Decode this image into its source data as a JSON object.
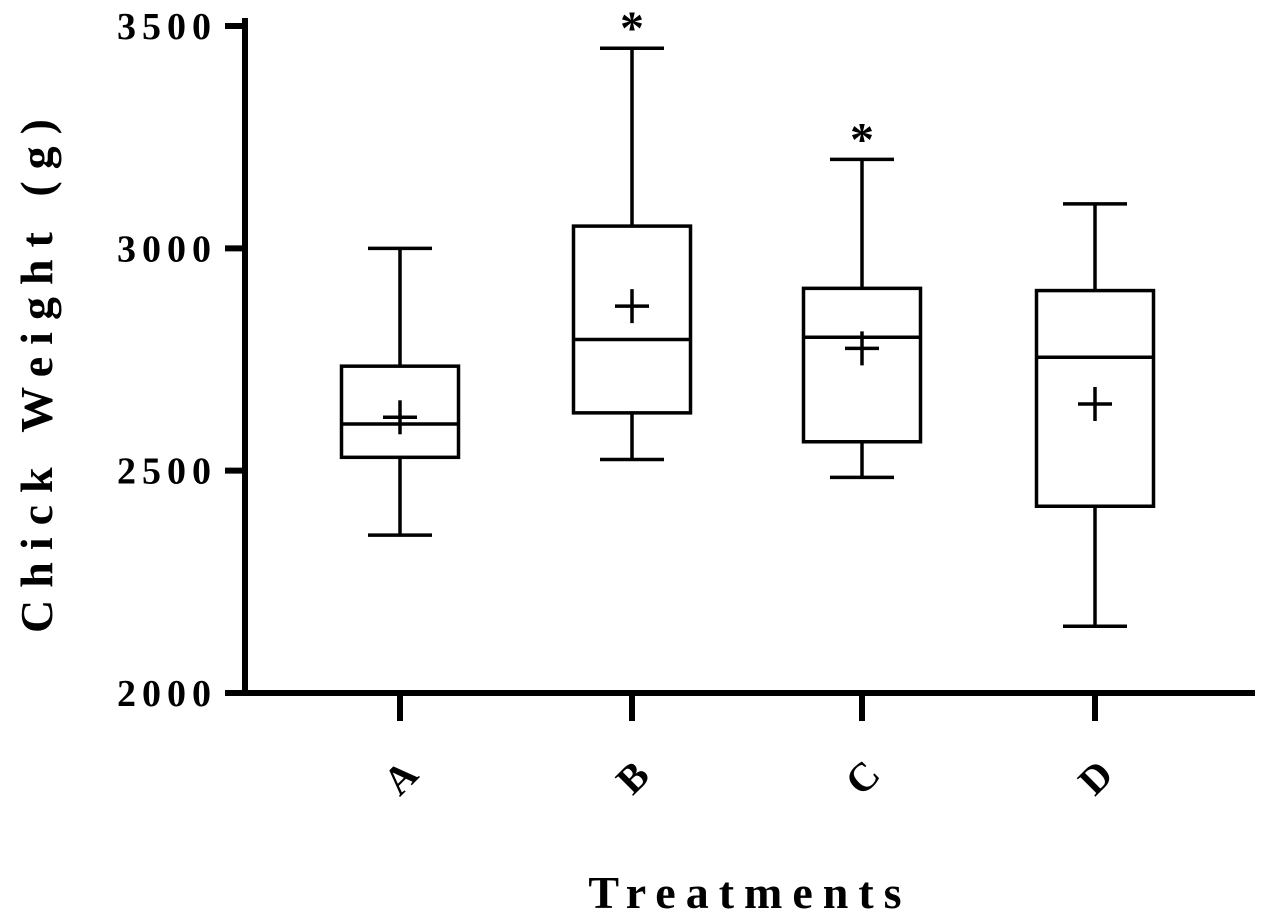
{
  "chart_data": {
    "type": "box",
    "title": "",
    "xlabel": "Treatments",
    "ylabel": "Chick Weight (g)",
    "ylim": [
      2000,
      3500
    ],
    "yticks": [
      2000,
      2500,
      3000,
      3500
    ],
    "ytick_labels": [
      "2000",
      "2500",
      "3000",
      "3500"
    ],
    "grid": false,
    "legend": "none",
    "categories": [
      "A",
      "B",
      "C",
      "D"
    ],
    "boxes": [
      {
        "category": "A",
        "min": 2355,
        "q1": 2530,
        "median": 2605,
        "q3": 2735,
        "max": 3000,
        "mean": 2620,
        "significance": ""
      },
      {
        "category": "B",
        "min": 2525,
        "q1": 2630,
        "median": 2795,
        "q3": 3050,
        "max": 3450,
        "mean": 2870,
        "significance": "*"
      },
      {
        "category": "C",
        "min": 2485,
        "q1": 2565,
        "median": 2800,
        "q3": 2910,
        "max": 3200,
        "mean": 2775,
        "significance": "*"
      },
      {
        "category": "D",
        "min": 2150,
        "q1": 2420,
        "median": 2755,
        "q3": 2905,
        "max": 3100,
        "mean": 2650,
        "significance": ""
      }
    ]
  }
}
